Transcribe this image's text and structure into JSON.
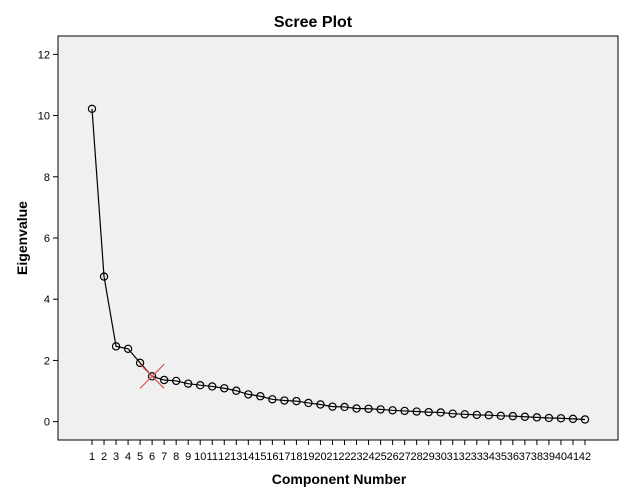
{
  "chart_data": {
    "type": "line",
    "title": "Scree Plot",
    "xlabel": "Component Number",
    "ylabel": "Eigenvalue",
    "x": [
      1,
      2,
      3,
      4,
      5,
      6,
      7,
      8,
      9,
      10,
      11,
      12,
      13,
      14,
      15,
      16,
      17,
      18,
      19,
      20,
      21,
      22,
      23,
      24,
      25,
      26,
      27,
      28,
      29,
      30,
      31,
      32,
      33,
      34,
      35,
      36,
      37,
      38,
      39,
      40,
      41,
      42
    ],
    "series": [
      {
        "values": [
          10.22,
          4.74,
          2.46,
          2.38,
          1.92,
          1.48,
          1.36,
          1.33,
          1.24,
          1.19,
          1.15,
          1.09,
          1.01,
          0.89,
          0.83,
          0.73,
          0.69,
          0.67,
          0.61,
          0.56,
          0.49,
          0.48,
          0.43,
          0.42,
          0.4,
          0.37,
          0.35,
          0.33,
          0.31,
          0.3,
          0.26,
          0.24,
          0.22,
          0.21,
          0.19,
          0.18,
          0.16,
          0.14,
          0.12,
          0.11,
          0.09,
          0.07
        ]
      }
    ],
    "ylim": [
      -0.6,
      12.6
    ],
    "yticks": [
      0,
      2,
      4,
      6,
      8,
      10,
      12
    ],
    "grid": false,
    "plot_background": "#f0f0f0",
    "line_color": "#000000",
    "marker": "open-circle",
    "highlight": {
      "component": 6,
      "marker": "x",
      "color": "#d9534f"
    }
  }
}
